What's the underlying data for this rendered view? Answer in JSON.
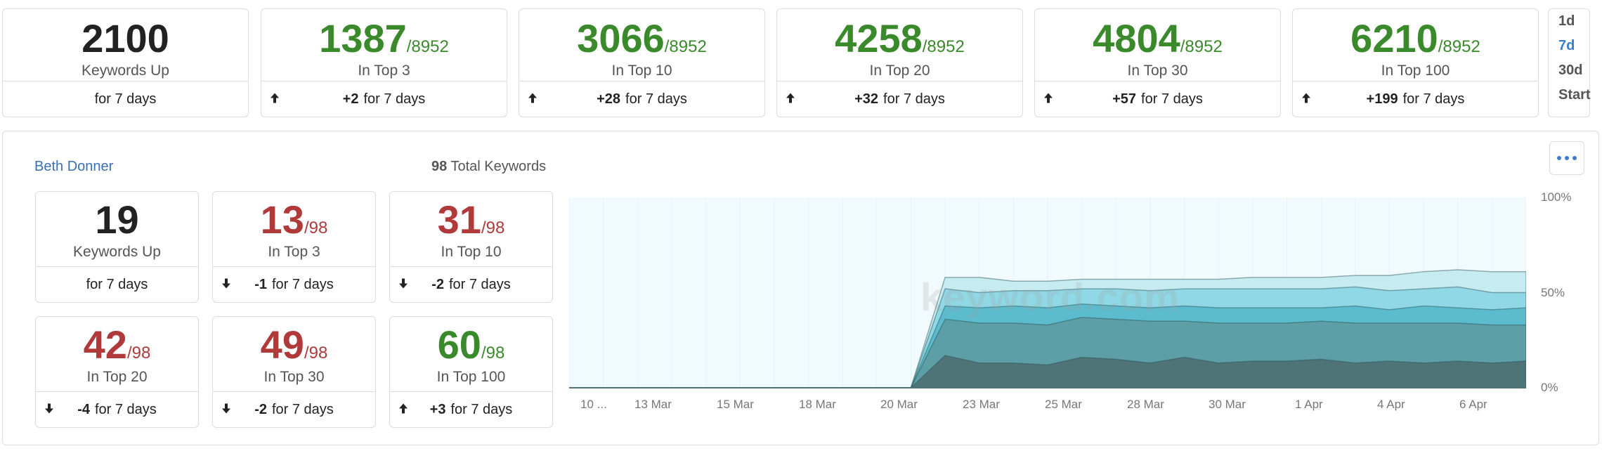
{
  "summary": {
    "keywords_up": {
      "value": "2100",
      "label": "Keywords Up",
      "footer": "for 7 days"
    },
    "cards": [
      {
        "value": "1387",
        "denom": "/8952",
        "label": "In Top 3",
        "change": "+2",
        "footer": "for 7 days",
        "direction": "up"
      },
      {
        "value": "3066",
        "denom": "/8952",
        "label": "In Top 10",
        "change": "+28",
        "footer": "for 7 days",
        "direction": "up"
      },
      {
        "value": "4258",
        "denom": "/8952",
        "label": "In Top 20",
        "change": "+32",
        "footer": "for 7 days",
        "direction": "up"
      },
      {
        "value": "4804",
        "denom": "/8952",
        "label": "In Top 30",
        "change": "+57",
        "footer": "for 7 days",
        "direction": "up"
      },
      {
        "value": "6210",
        "denom": "/8952",
        "label": "In Top 100",
        "change": "+199",
        "footer": "for 7 days",
        "direction": "up"
      }
    ]
  },
  "period_selector": {
    "options": [
      "1d",
      "7d",
      "30d",
      "Start"
    ],
    "selected": "7d"
  },
  "panel": {
    "user_name": "Beth Donner",
    "total_keywords_count": "98",
    "total_keywords_label": "Total Keywords",
    "keywords_up": {
      "value": "19",
      "label": "Keywords Up",
      "footer": "for 7 days"
    },
    "cards": [
      {
        "value": "13",
        "denom": "/98",
        "label": "In Top 3",
        "change": "-1",
        "footer": "for 7 days",
        "direction": "down",
        "color": "#b03a3a"
      },
      {
        "value": "31",
        "denom": "/98",
        "label": "In Top 10",
        "change": "-2",
        "footer": "for 7 days",
        "direction": "down",
        "color": "#b03a3a"
      },
      {
        "value": "42",
        "denom": "/98",
        "label": "In Top 20",
        "change": "-4",
        "footer": "for 7 days",
        "direction": "down",
        "color": "#b03a3a"
      },
      {
        "value": "49",
        "denom": "/98",
        "label": "In Top 30",
        "change": "-2",
        "footer": "for 7 days",
        "direction": "down",
        "color": "#b03a3a"
      },
      {
        "value": "60",
        "denom": "/98",
        "label": "In Top 100",
        "change": "+3",
        "footer": "for 7 days",
        "direction": "up",
        "color": "#3a8a2c"
      }
    ]
  },
  "icons": {
    "up": "arrow-up-icon",
    "down": "arrow-down-icon",
    "more": "more-horizontal-icon"
  },
  "colors": {
    "green": "#3a8a2c",
    "red": "#b03a3a",
    "accent": "#3b7bd0"
  },
  "watermark": "keyword.com",
  "chart_data": {
    "type": "area",
    "x_tick_labels": [
      "10 ...",
      "13 Mar",
      "15 Mar",
      "18 Mar",
      "20 Mar",
      "23 Mar",
      "25 Mar",
      "28 Mar",
      "30 Mar",
      "1 Apr",
      "4 Apr",
      "6 Apr"
    ],
    "y_tick_labels": [
      "100%",
      "50%",
      "0%"
    ],
    "ylim": [
      0,
      100
    ],
    "x": [
      "10 Mar",
      "11 Mar",
      "12 Mar",
      "13 Mar",
      "14 Mar",
      "15 Mar",
      "16 Mar",
      "17 Mar",
      "18 Mar",
      "19 Mar",
      "20 Mar",
      "21 Mar",
      "22 Mar",
      "23 Mar",
      "24 Mar",
      "25 Mar",
      "26 Mar",
      "27 Mar",
      "28 Mar",
      "29 Mar",
      "30 Mar",
      "31 Mar",
      "1 Apr",
      "2 Apr",
      "3 Apr",
      "4 Apr",
      "5 Apr",
      "6 Apr",
      "7 Apr"
    ],
    "series": [
      {
        "values": [
          0,
          0,
          0,
          0,
          0,
          0,
          0,
          0,
          0,
          0,
          0,
          58,
          58,
          56,
          56,
          57,
          57,
          57,
          57,
          57,
          58,
          58,
          58,
          59,
          59,
          61,
          62,
          61,
          61
        ],
        "color": "#c6ecf2"
      },
      {
        "values": [
          0,
          0,
          0,
          0,
          0,
          0,
          0,
          0,
          0,
          0,
          0,
          52,
          50,
          51,
          51,
          52,
          52,
          51,
          52,
          52,
          52,
          52,
          52,
          53,
          51,
          52,
          53,
          50,
          50
        ],
        "color": "#90d8e6"
      },
      {
        "values": [
          0,
          0,
          0,
          0,
          0,
          0,
          0,
          0,
          0,
          0,
          0,
          43,
          42,
          43,
          42,
          44,
          43,
          42,
          43,
          42,
          42,
          42,
          42,
          43,
          41,
          43,
          42,
          41,
          42
        ],
        "color": "#5cbccd"
      },
      {
        "values": [
          0,
          0,
          0,
          0,
          0,
          0,
          0,
          0,
          0,
          0,
          0,
          36,
          34,
          34,
          33,
          37,
          36,
          35,
          35,
          34,
          34,
          34,
          35,
          34,
          34,
          34,
          34,
          33,
          33
        ],
        "color": "#5e9ea6"
      },
      {
        "values": [
          0,
          0,
          0,
          0,
          0,
          0,
          0,
          0,
          0,
          0,
          0,
          17,
          13,
          13,
          12,
          16,
          15,
          13,
          16,
          13,
          14,
          14,
          15,
          13,
          14,
          13,
          14,
          13,
          14
        ],
        "color": "#4f7478"
      }
    ],
    "grid": true
  }
}
